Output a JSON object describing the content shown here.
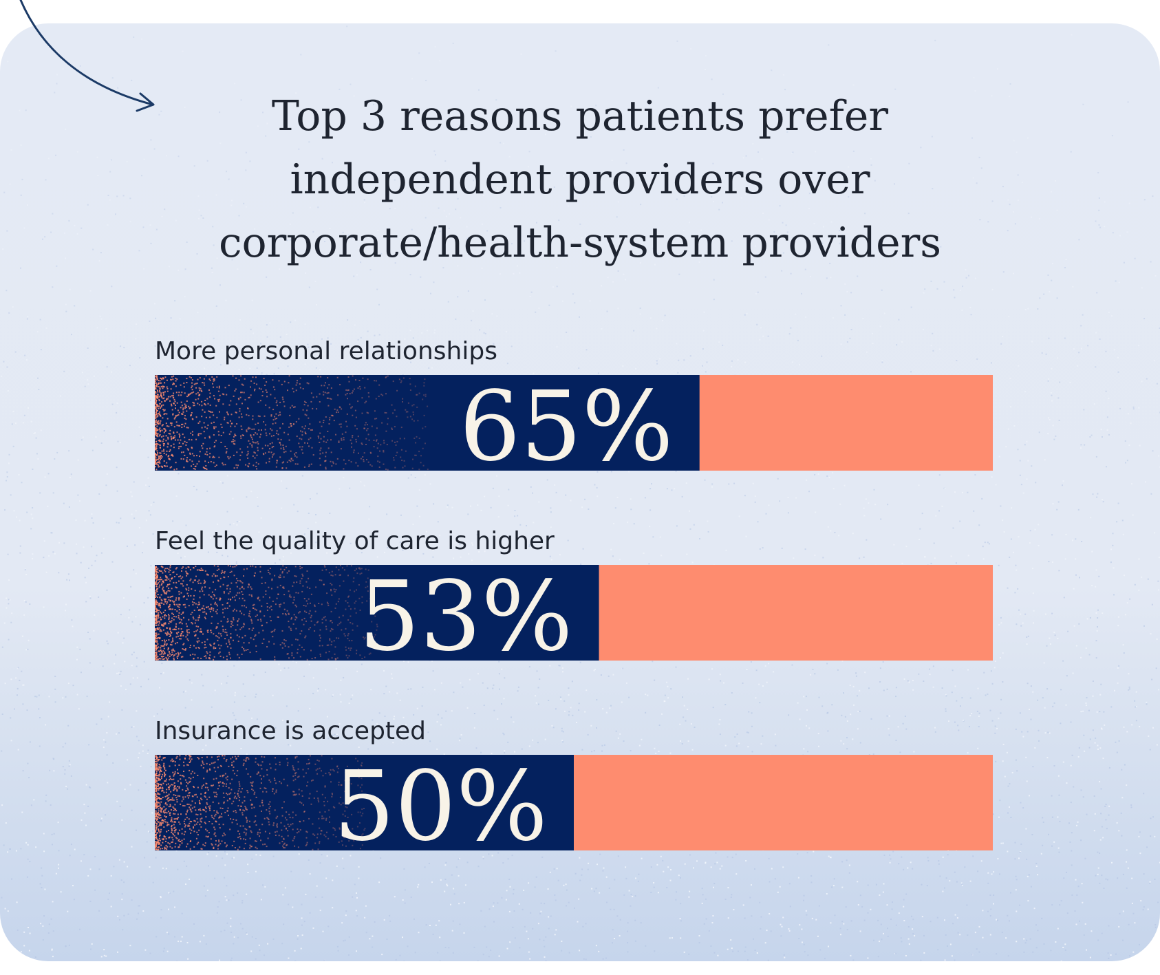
{
  "chart_data": {
    "type": "bar",
    "orientation": "horizontal",
    "title_lines": [
      "Top 3 reasons patients prefer",
      "independent providers over",
      "corporate/health-system providers"
    ],
    "categories": [
      "More personal relationships",
      "Feel the quality of care is higher",
      "Insurance is accepted"
    ],
    "values": [
      65,
      53,
      50
    ],
    "value_labels": [
      "65%",
      "53%",
      "50%"
    ],
    "xlim": [
      0,
      100
    ],
    "grid": false,
    "legend": "none"
  },
  "colors": {
    "background": "#e4eaf5",
    "bar_fill": "#04215e",
    "bar_remainder": "#fe8c6f",
    "grain": "#fe8c6f",
    "value_text": "#f8f3e8",
    "text": "#1e2430",
    "arrow": "#1b3a66"
  },
  "icons": {
    "arrow": "curved-arrow-icon"
  }
}
